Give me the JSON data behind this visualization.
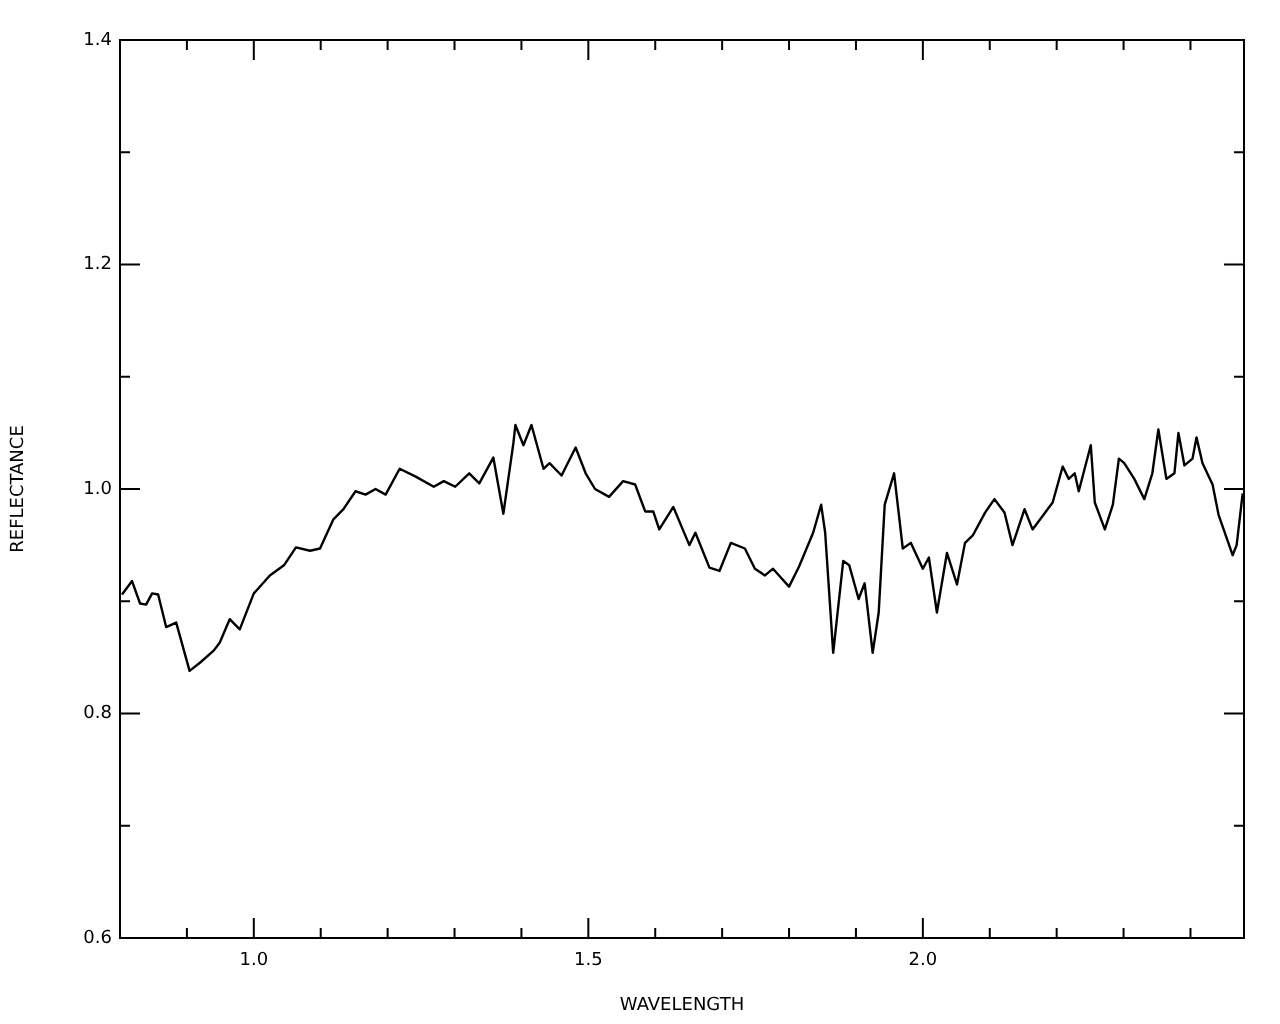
{
  "chart_data": {
    "type": "line",
    "xlabel": "WAVELENGTH",
    "ylabel": "REFLECTANCE",
    "grid": false,
    "legend": false,
    "marker": "none",
    "line_style": "solid",
    "xlim": [
      0.8,
      2.48
    ],
    "ylim": [
      0.6,
      1.4
    ],
    "xticks": [
      {
        "value": 0.9,
        "label": null
      },
      {
        "value": 1.0,
        "label": "1.0"
      },
      {
        "value": 1.1,
        "label": null
      },
      {
        "value": 1.2,
        "label": null
      },
      {
        "value": 1.3,
        "label": null
      },
      {
        "value": 1.4,
        "label": null
      },
      {
        "value": 1.5,
        "label": "1.5"
      },
      {
        "value": 1.6,
        "label": null
      },
      {
        "value": 1.7,
        "label": null
      },
      {
        "value": 1.8,
        "label": null
      },
      {
        "value": 1.9,
        "label": null
      },
      {
        "value": 2.0,
        "label": "2.0"
      },
      {
        "value": 2.1,
        "label": null
      },
      {
        "value": 2.2,
        "label": null
      },
      {
        "value": 2.3,
        "label": null
      },
      {
        "value": 2.4,
        "label": null
      }
    ],
    "yticks": [
      {
        "value": 0.6,
        "label": "0.6"
      },
      {
        "value": 0.7,
        "label": null
      },
      {
        "value": 0.8,
        "label": "0.8"
      },
      {
        "value": 0.9,
        "label": null
      },
      {
        "value": 1.0,
        "label": "1.0"
      },
      {
        "value": 1.1,
        "label": null
      },
      {
        "value": 1.2,
        "label": "1.2"
      },
      {
        "value": 1.3,
        "label": null
      },
      {
        "value": 1.4,
        "label": "1.4"
      }
    ],
    "series": [
      {
        "color": "#000000",
        "x": [
          0.803,
          0.818,
          0.83,
          0.839,
          0.848,
          0.857,
          0.869,
          0.884,
          0.904,
          0.919,
          0.94,
          0.949,
          0.964,
          0.979,
          1.0,
          1.024,
          1.045,
          1.063,
          1.084,
          1.099,
          1.119,
          1.134,
          1.152,
          1.167,
          1.182,
          1.197,
          1.218,
          1.242,
          1.269,
          1.284,
          1.301,
          1.322,
          1.337,
          1.358,
          1.373,
          1.388,
          1.391,
          1.403,
          1.415,
          1.433,
          1.442,
          1.46,
          1.481,
          1.496,
          1.51,
          1.531,
          1.552,
          1.57,
          1.585,
          1.597,
          1.606,
          1.627,
          1.651,
          1.66,
          1.681,
          1.696,
          1.713,
          1.734,
          1.749,
          1.764,
          1.776,
          1.785,
          1.8,
          1.815,
          1.836,
          1.848,
          1.854,
          1.866,
          1.881,
          1.89,
          1.904,
          1.913,
          1.925,
          1.934,
          1.943,
          1.957,
          1.97,
          1.982,
          2.0,
          2.009,
          2.021,
          2.036,
          2.051,
          2.063,
          2.075,
          2.093,
          2.107,
          2.122,
          2.134,
          2.152,
          2.164,
          2.194,
          2.209,
          2.218,
          2.227,
          2.233,
          2.251,
          2.257,
          2.272,
          2.284,
          2.293,
          2.301,
          2.316,
          2.331,
          2.343,
          2.352,
          2.364,
          2.376,
          2.382,
          2.391,
          2.403,
          2.409,
          2.418,
          2.433,
          2.442,
          2.463,
          2.469,
          2.478
        ],
        "values": [
          0.906,
          0.918,
          0.898,
          0.897,
          0.907,
          0.906,
          0.877,
          0.881,
          0.838,
          0.845,
          0.856,
          0.863,
          0.884,
          0.875,
          0.907,
          0.923,
          0.932,
          0.948,
          0.945,
          0.947,
          0.973,
          0.982,
          0.998,
          0.995,
          1.0,
          0.995,
          1.018,
          1.011,
          1.002,
          1.007,
          1.002,
          1.014,
          1.005,
          1.028,
          0.978,
          1.041,
          1.057,
          1.039,
          1.057,
          1.018,
          1.023,
          1.012,
          1.037,
          1.014,
          1.0,
          0.993,
          1.007,
          1.004,
          0.98,
          0.98,
          0.964,
          0.984,
          0.95,
          0.961,
          0.93,
          0.927,
          0.952,
          0.947,
          0.929,
          0.923,
          0.929,
          0.923,
          0.913,
          0.931,
          0.961,
          0.986,
          0.961,
          0.854,
          0.936,
          0.932,
          0.902,
          0.916,
          0.854,
          0.89,
          0.986,
          1.014,
          0.947,
          0.952,
          0.929,
          0.939,
          0.89,
          0.943,
          0.915,
          0.952,
          0.959,
          0.979,
          0.991,
          0.979,
          0.95,
          0.982,
          0.964,
          0.988,
          1.02,
          1.009,
          1.014,
          0.998,
          1.039,
          0.988,
          0.964,
          0.986,
          1.027,
          1.023,
          1.009,
          0.991,
          1.014,
          1.053,
          1.009,
          1.014,
          1.05,
          1.021,
          1.027,
          1.046,
          1.023,
          1.004,
          0.977,
          0.941,
          0.95,
          0.996
        ]
      }
    ]
  }
}
